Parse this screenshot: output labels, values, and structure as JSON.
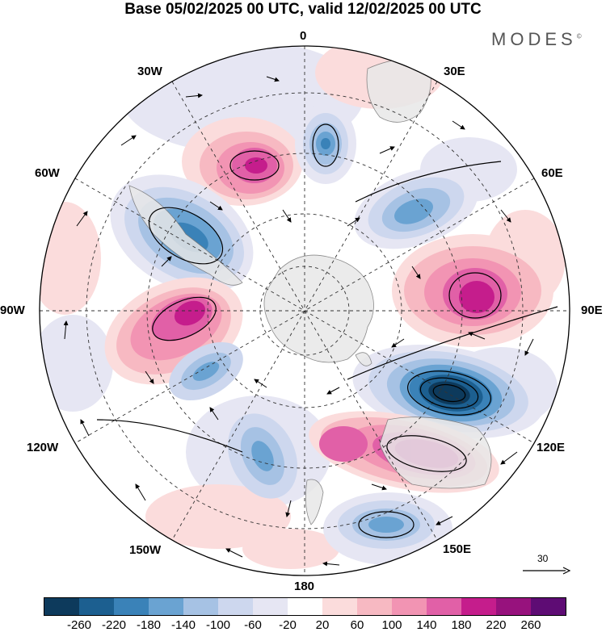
{
  "title": "Base 05/02/2025 00 UTC, valid 12/02/2025 00 UTC",
  "brand": "MODES",
  "brand_mark": "©",
  "longitude_labels": {
    "lon_0": "0",
    "lon_30e": "30E",
    "lon_60e": "60E",
    "lon_90e": "90E",
    "lon_120e": "120E",
    "lon_150e": "150E",
    "lon_180": "180",
    "lon_150w": "150W",
    "lon_120w": "120W",
    "lon_90w": "90W",
    "lon_60w": "60W",
    "lon_30w": "30W"
  },
  "wind_scale_label": "30",
  "colors": {
    "neg_260": "#0d3a5c",
    "neg_220": "#1c5f90",
    "neg_180": "#3a82b8",
    "neg_140": "#6aa3d2",
    "neg_100": "#a6c2e4",
    "neg_60": "#cdd7ee",
    "neg_20": "#e6e6f3",
    "zero": "#ffffff",
    "pos_20": "#fbdcdc",
    "pos_60": "#f7b9c2",
    "pos_100": "#f294b3",
    "pos_140": "#e160a7",
    "pos_180": "#c51d8c",
    "pos_220": "#97127d",
    "pos_260": "#5e0c74",
    "land": "#e8e8e8"
  },
  "colorbar": {
    "tick_labels": [
      "-260",
      "-220",
      "-180",
      "-140",
      "-100",
      "-60",
      "-20",
      "20",
      "60",
      "100",
      "140",
      "180",
      "220",
      "260"
    ]
  }
}
